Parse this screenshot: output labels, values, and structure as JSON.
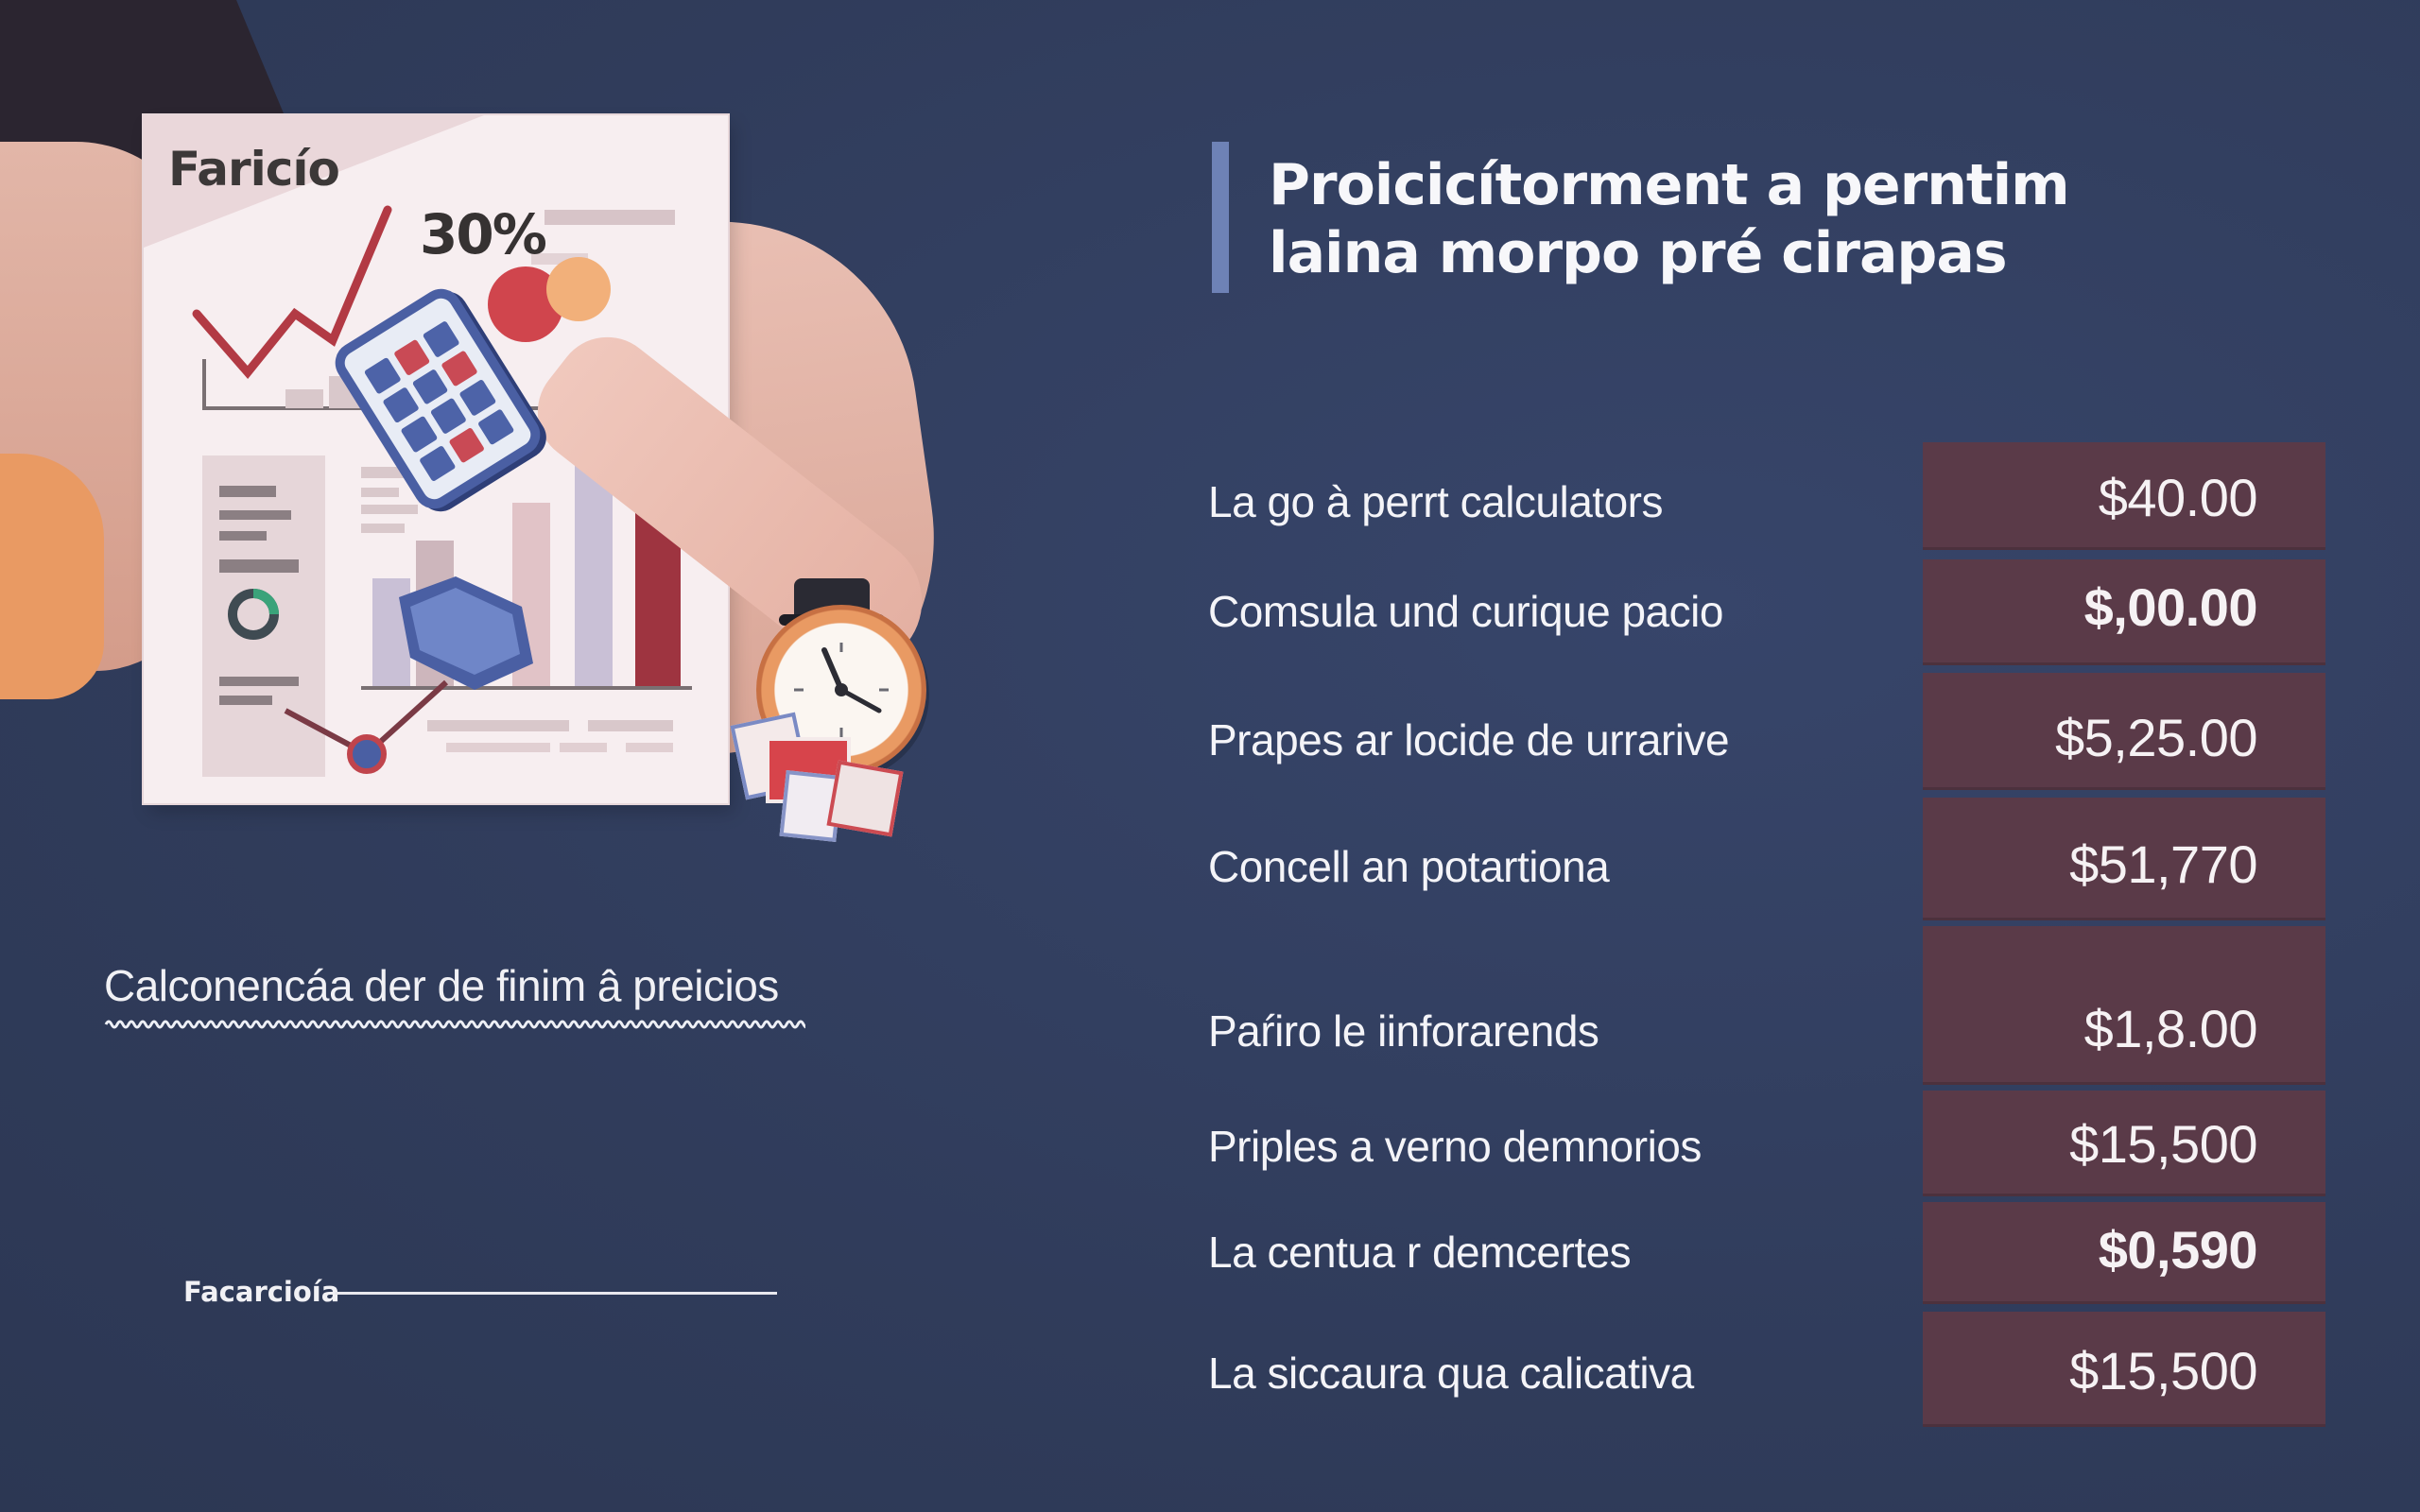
{
  "illustration": {
    "doc_title": "Faricío",
    "doc_percent": "30%"
  },
  "caption": "Calconencáa der de finim â preicios",
  "signature_label": "Facarcioía",
  "heading": {
    "line1": "Proicicítorment a perntim",
    "line2": "laina morpo pré cirapas"
  },
  "rows": [
    {
      "label": "La go à perrt calculators",
      "price": "$40.00",
      "bold": false
    },
    {
      "label": "Comsula und curique pacio",
      "price": "$,00.00",
      "bold": true
    },
    {
      "label": "Prapes ar locide de urrarive",
      "price": "$5,25.00",
      "bold": false
    },
    {
      "label": "Concell an potartiona",
      "price": "$51,770",
      "bold": false
    },
    {
      "label": "Paŕiro le iinforarends",
      "price": "$1,8.00",
      "bold": false
    },
    {
      "label": "Priples a verno demnorios",
      "price": "$15,500",
      "bold": false
    },
    {
      "label": "La centua r demcertes",
      "price": "$0,590",
      "bold": true
    },
    {
      "label": "La siccaura qua calicativa",
      "price": "$15,500",
      "bold": false
    }
  ],
  "colors": {
    "background": "#33405e",
    "price_box": "#5a3a48",
    "accent_bar": "#6e82b6"
  }
}
